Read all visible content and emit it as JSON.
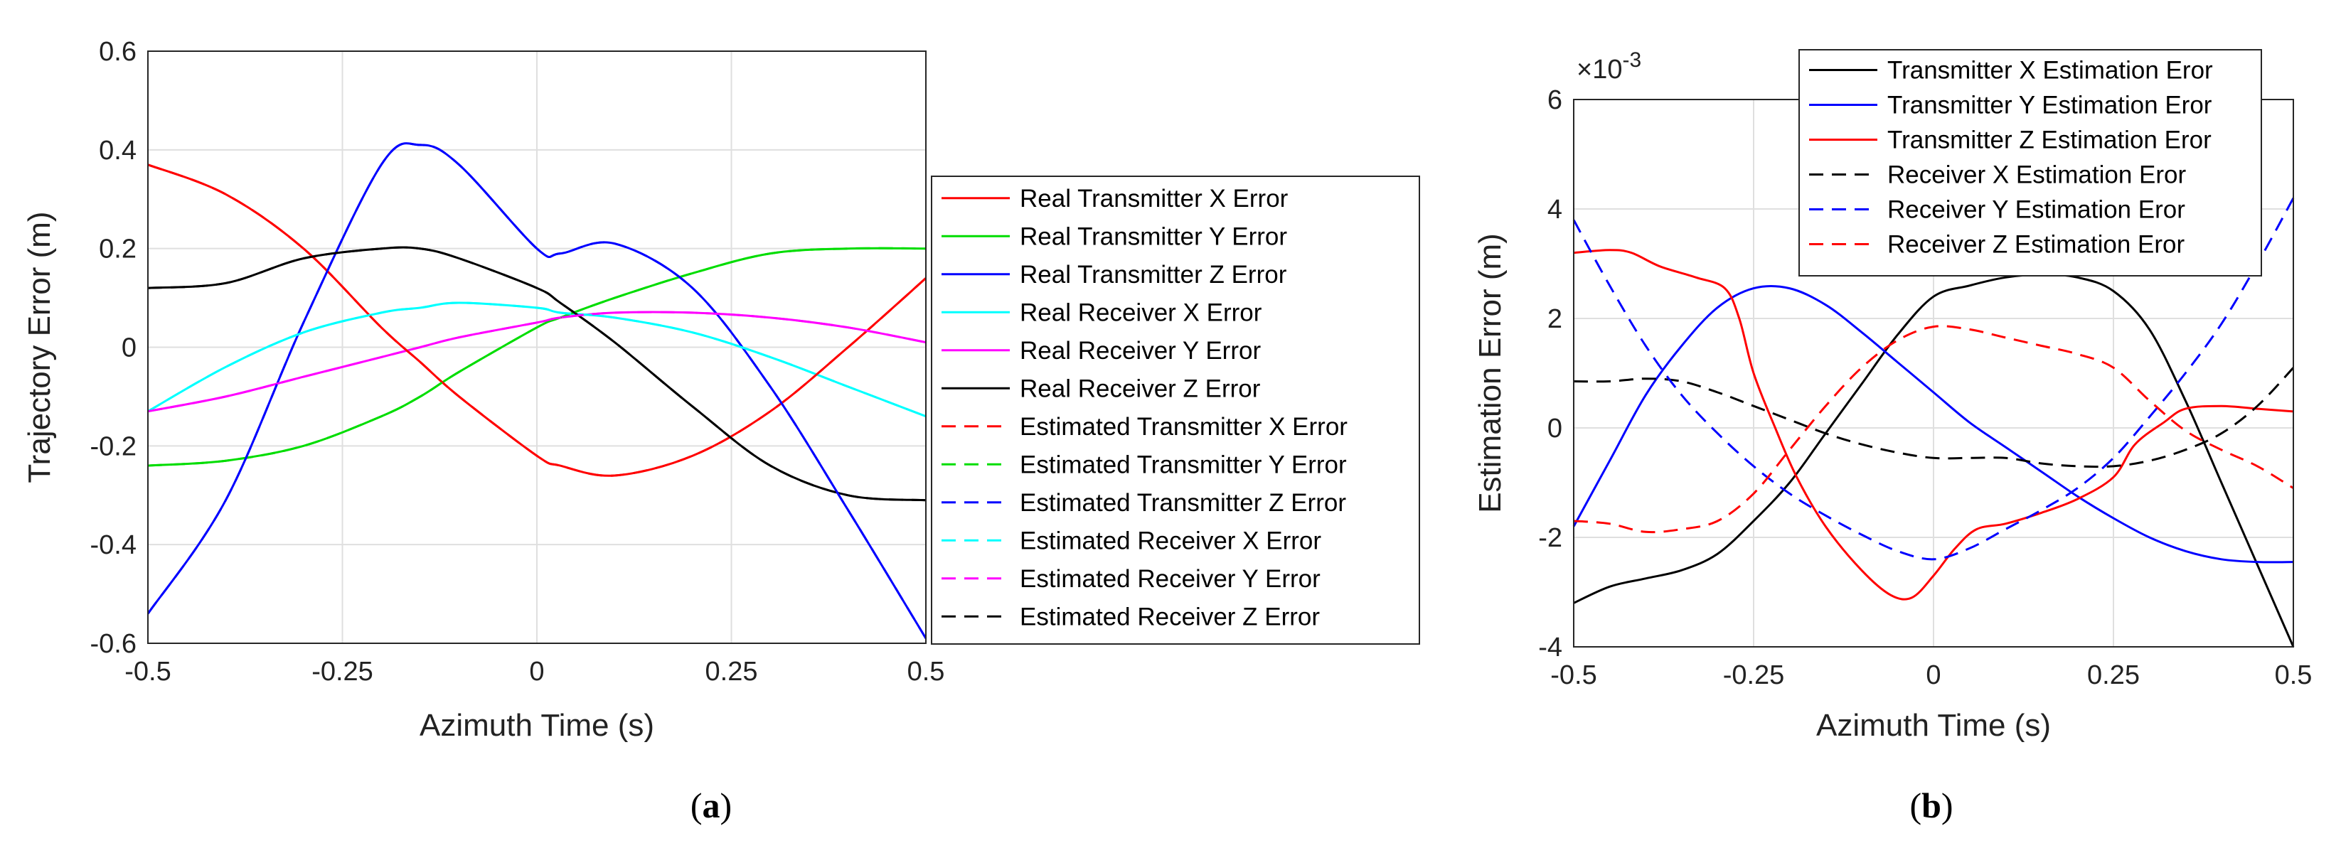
{
  "chart_data": [
    {
      "type": "line",
      "panel": "(a)",
      "caption_label": "a",
      "xlabel": "Azimuth Time (s)",
      "ylabel": "Trajectory Error (m)",
      "xlim": [
        -0.5,
        0.5
      ],
      "ylim": [
        -0.6,
        0.6
      ],
      "xticks": [
        -0.5,
        -0.25,
        0,
        0.25,
        0.5
      ],
      "xtick_labels": [
        "-0.5",
        "-0.25",
        "0",
        "0.25",
        "0.5"
      ],
      "yticks": [
        -0.6,
        -0.4,
        -0.2,
        0,
        0.2,
        0.4,
        0.6
      ],
      "ytick_labels": [
        "-0.6",
        "-0.4",
        "-0.2",
        "0",
        "0.2",
        "0.4",
        "0.6"
      ],
      "grid": true,
      "legend_position": "outside-right",
      "x": [
        -0.5,
        -0.4,
        -0.3,
        -0.2,
        -0.15,
        -0.1,
        0,
        0.03,
        0.1,
        0.2,
        0.3,
        0.4,
        0.5
      ],
      "series": [
        {
          "name": "Real Transmitter X Error",
          "color": "#ff0000",
          "dash": "solid",
          "y": [
            0.37,
            0.31,
            0.2,
            0.04,
            -0.03,
            -0.1,
            -0.22,
            -0.24,
            -0.26,
            -0.22,
            -0.13,
            0.0,
            0.14
          ]
        },
        {
          "name": "Real Transmitter Y Error",
          "color": "#00dd00",
          "dash": "solid",
          "y": [
            -0.24,
            -0.23,
            -0.2,
            -0.14,
            -0.1,
            -0.05,
            0.04,
            0.06,
            0.1,
            0.15,
            0.19,
            0.2,
            0.2
          ]
        },
        {
          "name": "Real Transmitter Z Error",
          "color": "#0000ff",
          "dash": "solid",
          "y": [
            -0.54,
            -0.31,
            0.05,
            0.37,
            0.41,
            0.37,
            0.2,
            0.19,
            0.21,
            0.12,
            -0.08,
            -0.33,
            -0.59
          ]
        },
        {
          "name": "Real Receiver X Error",
          "color": "#00ffff",
          "dash": "solid",
          "y": [
            -0.13,
            -0.04,
            0.03,
            0.07,
            0.08,
            0.09,
            0.08,
            0.07,
            0.06,
            0.03,
            -0.02,
            -0.08,
            -0.14
          ]
        },
        {
          "name": "Real Receiver Y Error",
          "color": "#ff00ff",
          "dash": "solid",
          "y": [
            -0.13,
            -0.1,
            -0.06,
            -0.02,
            0.0,
            0.02,
            0.05,
            0.06,
            0.07,
            0.07,
            0.06,
            0.04,
            0.01
          ]
        },
        {
          "name": "Real Receiver Z Error",
          "color": "#000000",
          "dash": "solid",
          "y": [
            0.12,
            0.13,
            0.18,
            0.2,
            0.2,
            0.18,
            0.12,
            0.09,
            0.01,
            -0.12,
            -0.24,
            -0.3,
            -0.31
          ]
        },
        {
          "name": "Estimated Transmitter X Error",
          "color": "#ff0000",
          "dash": "dashed",
          "y": [
            0.37,
            0.31,
            0.2,
            0.04,
            -0.03,
            -0.1,
            -0.22,
            -0.24,
            -0.26,
            -0.22,
            -0.13,
            0.0,
            0.14
          ]
        },
        {
          "name": "Estimated Transmitter Y Error",
          "color": "#00dd00",
          "dash": "dashed",
          "y": [
            -0.24,
            -0.23,
            -0.2,
            -0.14,
            -0.1,
            -0.05,
            0.04,
            0.06,
            0.1,
            0.15,
            0.19,
            0.2,
            0.2
          ]
        },
        {
          "name": "Estimated Transmitter Z Error",
          "color": "#0000ff",
          "dash": "dashed",
          "y": [
            -0.54,
            -0.31,
            0.05,
            0.37,
            0.41,
            0.37,
            0.2,
            0.19,
            0.21,
            0.12,
            -0.08,
            -0.33,
            -0.59
          ]
        },
        {
          "name": "Estimated Receiver X Error",
          "color": "#00ffff",
          "dash": "dashed",
          "y": [
            -0.13,
            -0.04,
            0.03,
            0.07,
            0.08,
            0.09,
            0.08,
            0.07,
            0.06,
            0.03,
            -0.02,
            -0.08,
            -0.14
          ]
        },
        {
          "name": "Estimated Receiver Y Error",
          "color": "#ff00ff",
          "dash": "dashed",
          "y": [
            -0.13,
            -0.1,
            -0.06,
            -0.02,
            0.0,
            0.02,
            0.05,
            0.06,
            0.07,
            0.07,
            0.06,
            0.04,
            0.01
          ]
        },
        {
          "name": "Estimated Receiver Z Error",
          "color": "#000000",
          "dash": "dashed",
          "y": [
            0.12,
            0.13,
            0.18,
            0.2,
            0.2,
            0.18,
            0.12,
            0.09,
            0.01,
            -0.12,
            -0.24,
            -0.3,
            -0.31
          ]
        }
      ]
    },
    {
      "type": "line",
      "panel": "(b)",
      "caption_label": "b",
      "xlabel": "Azimuth Time (s)",
      "ylabel": "Estimation Error (m)",
      "exponent_label": "×10",
      "exponent_power": "-3",
      "xlim": [
        -0.5,
        0.5
      ],
      "ylim": [
        -4,
        6
      ],
      "xticks": [
        -0.5,
        -0.25,
        0,
        0.25,
        0.5
      ],
      "xtick_labels": [
        "-0.5",
        "-0.25",
        "0",
        "0.25",
        "0.5"
      ],
      "yticks": [
        -4,
        -2,
        0,
        2,
        4,
        6
      ],
      "ytick_labels": [
        "-4",
        "-2",
        "0",
        "2",
        "4",
        "6"
      ],
      "grid": true,
      "legend_position": "top-right",
      "series": [
        {
          "name": "Transmitter X Estimation Eror",
          "color": "#000000",
          "dash": "solid",
          "x": [
            -0.5,
            -0.45,
            -0.4,
            -0.35,
            -0.3,
            -0.25,
            -0.2,
            -0.15,
            -0.1,
            -0.05,
            0,
            0.05,
            0.1,
            0.15,
            0.2,
            0.25,
            0.3,
            0.35,
            0.4,
            0.45,
            0.5
          ],
          "y": [
            -3.2,
            -2.9,
            -2.75,
            -2.6,
            -2.3,
            -1.7,
            -1.0,
            -0.1,
            0.8,
            1.7,
            2.4,
            2.6,
            2.75,
            2.8,
            2.75,
            2.5,
            1.8,
            0.5,
            -1.0,
            -2.5,
            -4.0
          ]
        },
        {
          "name": "Transmitter Y Estimation Eror",
          "color": "#0000ff",
          "dash": "solid",
          "x": [
            -0.5,
            -0.45,
            -0.4,
            -0.35,
            -0.3,
            -0.25,
            -0.2,
            -0.15,
            -0.1,
            -0.05,
            0,
            0.05,
            0.1,
            0.15,
            0.2,
            0.25,
            0.3,
            0.35,
            0.4,
            0.45,
            0.5
          ],
          "y": [
            -1.8,
            -0.6,
            0.6,
            1.5,
            2.2,
            2.55,
            2.55,
            2.25,
            1.75,
            1.2,
            0.65,
            0.1,
            -0.35,
            -0.8,
            -1.25,
            -1.65,
            -2.0,
            -2.25,
            -2.4,
            -2.45,
            -2.45
          ]
        },
        {
          "name": "Transmitter Z Estimation Eror",
          "color": "#ff0000",
          "dash": "solid",
          "x": [
            -0.5,
            -0.45,
            -0.42,
            -0.38,
            -0.33,
            -0.29,
            -0.27,
            -0.25,
            -0.22,
            -0.19,
            -0.15,
            -0.1,
            -0.06,
            -0.03,
            0,
            0.03,
            0.06,
            0.1,
            0.15,
            0.2,
            0.25,
            0.28,
            0.32,
            0.35,
            0.4,
            0.45,
            0.5
          ],
          "y": [
            3.2,
            3.25,
            3.2,
            2.95,
            2.75,
            2.55,
            2.0,
            1.0,
            0.0,
            -0.9,
            -1.8,
            -2.6,
            -3.05,
            -3.1,
            -2.7,
            -2.2,
            -1.85,
            -1.75,
            -1.55,
            -1.3,
            -0.9,
            -0.3,
            0.1,
            0.35,
            0.4,
            0.35,
            0.3
          ]
        },
        {
          "name": "Receiver X Estimation Eror",
          "color": "#000000",
          "dash": "dashed",
          "x": [
            -0.5,
            -0.45,
            -0.4,
            -0.35,
            -0.3,
            -0.25,
            -0.2,
            -0.15,
            -0.1,
            -0.05,
            0,
            0.05,
            0.1,
            0.15,
            0.2,
            0.25,
            0.3,
            0.35,
            0.4,
            0.45,
            0.5
          ],
          "y": [
            0.85,
            0.85,
            0.9,
            0.85,
            0.65,
            0.4,
            0.15,
            -0.1,
            -0.3,
            -0.45,
            -0.55,
            -0.55,
            -0.55,
            -0.65,
            -0.7,
            -0.7,
            -0.6,
            -0.4,
            -0.1,
            0.4,
            1.1
          ]
        },
        {
          "name": "Receiver Y Estimation Eror",
          "color": "#0000ff",
          "dash": "dashed",
          "x": [
            -0.5,
            -0.45,
            -0.4,
            -0.35,
            -0.3,
            -0.25,
            -0.2,
            -0.15,
            -0.1,
            -0.05,
            0,
            0.05,
            0.1,
            0.15,
            0.2,
            0.25,
            0.3,
            0.35,
            0.4,
            0.45,
            0.5
          ],
          "y": [
            3.8,
            2.6,
            1.5,
            0.6,
            -0.1,
            -0.7,
            -1.2,
            -1.6,
            -1.95,
            -2.25,
            -2.4,
            -2.2,
            -1.85,
            -1.5,
            -1.1,
            -0.55,
            0.2,
            1.0,
            1.9,
            3.0,
            4.2
          ]
        },
        {
          "name": "Receiver Z Estimation Eror",
          "color": "#ff0000",
          "dash": "dashed",
          "x": [
            -0.5,
            -0.45,
            -0.4,
            -0.35,
            -0.3,
            -0.25,
            -0.2,
            -0.15,
            -0.1,
            -0.05,
            0,
            0.05,
            0.1,
            0.15,
            0.2,
            0.25,
            0.3,
            0.35,
            0.4,
            0.45,
            0.5
          ],
          "y": [
            -1.7,
            -1.75,
            -1.9,
            -1.85,
            -1.7,
            -1.2,
            -0.4,
            0.4,
            1.1,
            1.6,
            1.85,
            1.8,
            1.65,
            1.5,
            1.35,
            1.1,
            0.5,
            -0.05,
            -0.4,
            -0.7,
            -1.1
          ]
        }
      ]
    }
  ]
}
